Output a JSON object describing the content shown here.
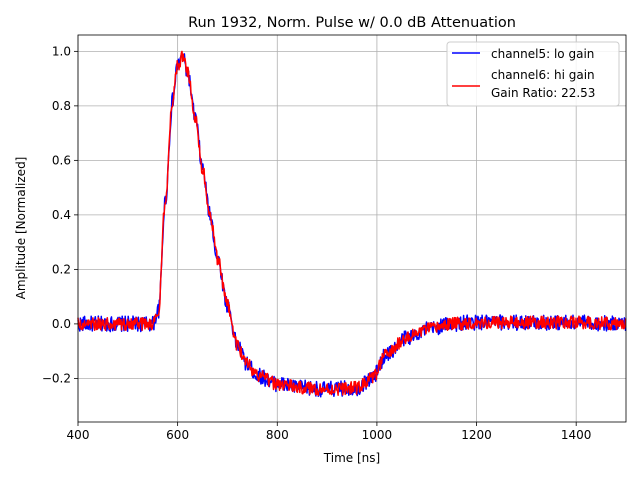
{
  "chart_data": {
    "type": "line",
    "title": "Run 1932, Norm. Pulse w/ 0.0 dB Attenuation",
    "xlabel": "Time [ns]",
    "ylabel": "Amplitude [Normalized]",
    "xlim": [
      400,
      1500
    ],
    "ylim": [
      -0.36,
      1.06
    ],
    "xticks": [
      400,
      600,
      800,
      1000,
      1200,
      1400
    ],
    "xtick_labels": [
      "400",
      "600",
      "800",
      "1000",
      "1200",
      "1400"
    ],
    "yticks": [
      -0.2,
      0.0,
      0.2,
      0.4,
      0.6,
      0.8,
      1.0
    ],
    "ytick_labels": [
      "−0.2",
      "0.0",
      "0.2",
      "0.4",
      "0.6",
      "0.8",
      "1.0"
    ],
    "grid": true,
    "legend_position": "top-right",
    "noise_amplitude": 0.025,
    "shape_keypoints": {
      "x": [
        400,
        550,
        562,
        575,
        590,
        600,
        610,
        620,
        635,
        650,
        665,
        680,
        700,
        720,
        740,
        760,
        800,
        850,
        900,
        960,
        990,
        1020,
        1060,
        1100,
        1150,
        1200,
        1300,
        1400,
        1500
      ],
      "y": [
        0.0,
        0.0,
        0.05,
        0.45,
        0.82,
        0.95,
        0.98,
        0.92,
        0.76,
        0.57,
        0.4,
        0.24,
        0.07,
        -0.08,
        -0.15,
        -0.19,
        -0.22,
        -0.235,
        -0.24,
        -0.235,
        -0.2,
        -0.11,
        -0.05,
        -0.02,
        0.0,
        0.005,
        0.005,
        0.005,
        0.0
      ]
    },
    "series": [
      {
        "name": "channel5: lo gain",
        "color": "#0000ff"
      },
      {
        "name": "channel6: hi gain",
        "color": "#ff0000"
      }
    ],
    "legend_entries": [
      "channel5: lo gain",
      "channel6: hi gain",
      "Gain Ratio: 22.53"
    ],
    "annotation": "Gain Ratio: 22.53"
  }
}
